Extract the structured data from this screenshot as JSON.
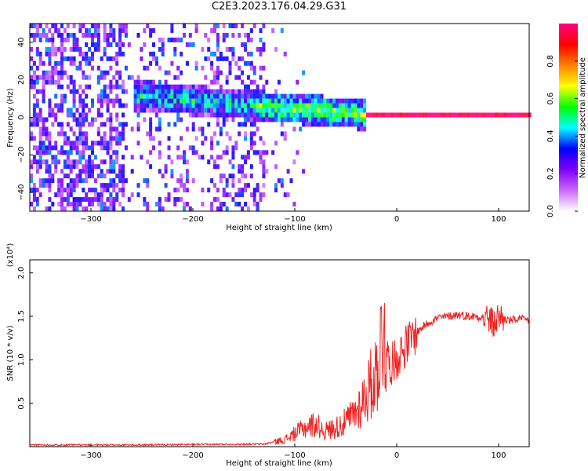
{
  "title": "C2E3.2023.176.04.29.G31",
  "chart_data": [
    {
      "type": "heatmap",
      "xlabel": "Height of straight line (km)",
      "ylabel": "Frequency (Hz)",
      "xlim": [
        -360,
        130
      ],
      "ylim": [
        -50,
        50
      ],
      "xticks": [
        -300,
        -200,
        -100,
        0,
        100
      ],
      "yticks": [
        -40,
        -20,
        0,
        20,
        40
      ],
      "colorbar": {
        "label": "Normalized spectral amplitude",
        "range": [
          0.0,
          1.0
        ],
        "ticks": [
          "0.0",
          "0.2",
          "0.4",
          "0.6",
          "0.8"
        ],
        "colors": [
          "#ffffff",
          "#cc66ff",
          "#7f00ff",
          "#0000ff",
          "#00ffff",
          "#00ff00",
          "#ffff00",
          "#ff8000",
          "#ff0000",
          "#ff0080"
        ]
      },
      "description_values": {
        "signal_track_km": [
          -250,
          130
        ],
        "signal_track_freq_hz": [
          10,
          0
        ]
      }
    },
    {
      "type": "line",
      "xlabel": "Height of straight line (km)",
      "ylabel": "SNR (10 * v/v)",
      "y_multiplier": "(x10⁴)",
      "xlim": [
        -360,
        130
      ],
      "ylim": [
        0,
        2.15
      ],
      "xticks": [
        -300,
        -200,
        -100,
        0,
        100
      ],
      "yticks": [
        "0.5",
        "1.0",
        "1.5",
        "2.0"
      ],
      "color": "#ee2222",
      "series": [
        {
          "x": [
            -360,
            -250,
            -130,
            -110,
            -100,
            -90,
            -80,
            -70,
            -60,
            -50,
            -40,
            -30,
            -20,
            -15,
            -12,
            -10,
            -5,
            0,
            10,
            20,
            30,
            40,
            50,
            60,
            70,
            80,
            90,
            95,
            100,
            110,
            120,
            130
          ],
          "y": [
            0.02,
            0.02,
            0.03,
            0.08,
            0.15,
            0.22,
            0.26,
            0.18,
            0.22,
            0.28,
            0.4,
            0.6,
            0.85,
            1.2,
            1.45,
            1.05,
            0.95,
            1.02,
            1.18,
            1.32,
            1.42,
            1.48,
            1.5,
            1.52,
            1.5,
            1.5,
            1.48,
            1.4,
            1.5,
            1.45,
            1.47,
            1.45
          ]
        }
      ]
    }
  ]
}
